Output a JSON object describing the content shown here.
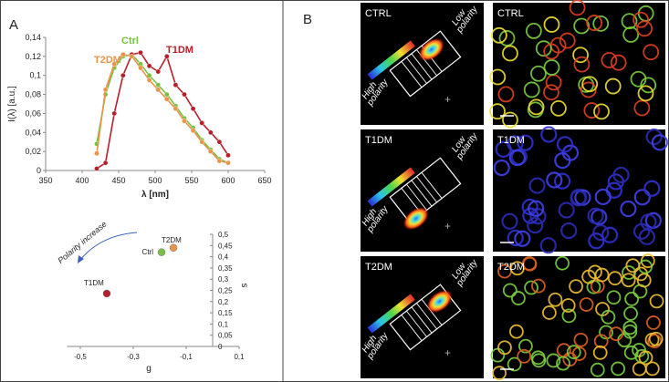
{
  "figure": {
    "panel_a_label": "A",
    "panel_b_label": "B",
    "panel_b_rows": [
      {
        "phasor_label": "CTRL",
        "image_label": "CTRL",
        "low": [
          "Low",
          "polarity"
        ],
        "high": [
          "High",
          "polarity"
        ]
      },
      {
        "phasor_label": "T1DM",
        "image_label": "T1DM",
        "low": [
          "Low",
          "polarity"
        ],
        "high": [
          "High",
          "polarity"
        ]
      },
      {
        "phasor_label": "T2DM",
        "image_label": "T2DM",
        "low": [
          "Low",
          "polarity"
        ],
        "high": [
          "High",
          "polarity"
        ]
      }
    ]
  },
  "chart_data": [
    {
      "type": "line",
      "x_label": "λ [nm]",
      "y_label": "I(λ) [a.u.]",
      "x": [
        420,
        432,
        444,
        456,
        468,
        480,
        492,
        504,
        516,
        528,
        540,
        552,
        564,
        576,
        588,
        600
      ],
      "series": [
        {
          "name": "Ctrl",
          "color": "#7ac143",
          "values": [
            0.028,
            0.08,
            0.108,
            0.12,
            0.122,
            0.112,
            0.1,
            0.09,
            0.08,
            0.068,
            0.055,
            0.045,
            0.032,
            0.022,
            0.012,
            0.008
          ]
        },
        {
          "name": "T1DM",
          "color": "#b5202a",
          "values": [
            0.002,
            0.008,
            0.06,
            0.1,
            0.122,
            0.124,
            0.11,
            0.104,
            0.12,
            0.09,
            0.08,
            0.065,
            0.05,
            0.04,
            0.03,
            0.016
          ]
        },
        {
          "name": "T2DM",
          "color": "#e8944a",
          "values": [
            0.018,
            0.085,
            0.112,
            0.122,
            0.12,
            0.108,
            0.095,
            0.085,
            0.075,
            0.065,
            0.052,
            0.042,
            0.03,
            0.02,
            0.01,
            0.008
          ]
        }
      ],
      "xlim": [
        350,
        650
      ],
      "xticks": [
        350,
        400,
        450,
        500,
        550,
        600,
        650
      ],
      "ylim": [
        0,
        0.14
      ],
      "yticks": [
        0,
        {
          "value": 0.02,
          "label": "0,02"
        },
        {
          "value": 0.04,
          "label": "0,04"
        },
        {
          "value": 0.06,
          "label": "0,06"
        },
        {
          "value": 0.08,
          "label": "0,08"
        },
        {
          "value": 0.1,
          "label": "0,1"
        },
        {
          "value": 0.12,
          "label": "0,12"
        },
        {
          "value": 0.14,
          "label": "0,14"
        }
      ]
    },
    {
      "type": "scatter",
      "x_label": "g",
      "y_label": "s",
      "annotation": "Polarity increase",
      "series": [
        {
          "name": "T2DM",
          "color": "#e8944a",
          "x": [
            -0.148
          ],
          "values": [
            0.44
          ]
        },
        {
          "name": "Ctrl",
          "color": "#7ac143",
          "x": [
            -0.193
          ],
          "values": [
            0.42
          ]
        },
        {
          "name": "T1DM",
          "color": "#b5202a",
          "x": [
            -0.4
          ],
          "values": [
            0.236
          ]
        }
      ],
      "xlim": [
        -0.55,
        0.1
      ],
      "xticks": [
        {
          "value": -0.5,
          "label": "-0,5"
        },
        {
          "value": -0.3,
          "label": "-0,3"
        },
        {
          "value": -0.1,
          "label": "-0,1"
        },
        {
          "value": 0.1,
          "label": "0,1"
        }
      ],
      "ylim": [
        0,
        0.5
      ],
      "yticks": [
        0,
        {
          "value": 0.05,
          "label": "0,05"
        },
        {
          "value": 0.1,
          "label": "0,1"
        },
        {
          "value": 0.15,
          "label": "0,15"
        },
        {
          "value": 0.2,
          "label": "0,2"
        },
        {
          "value": 0.25,
          "label": "0,25"
        },
        {
          "value": 0.3,
          "label": "0,3"
        },
        {
          "value": 0.35,
          "label": "0,35"
        },
        {
          "value": 0.4,
          "label": "0,4"
        },
        {
          "value": 0.45,
          "label": "0,45"
        },
        {
          "value": 0.5,
          "label": "0,5"
        }
      ]
    }
  ]
}
